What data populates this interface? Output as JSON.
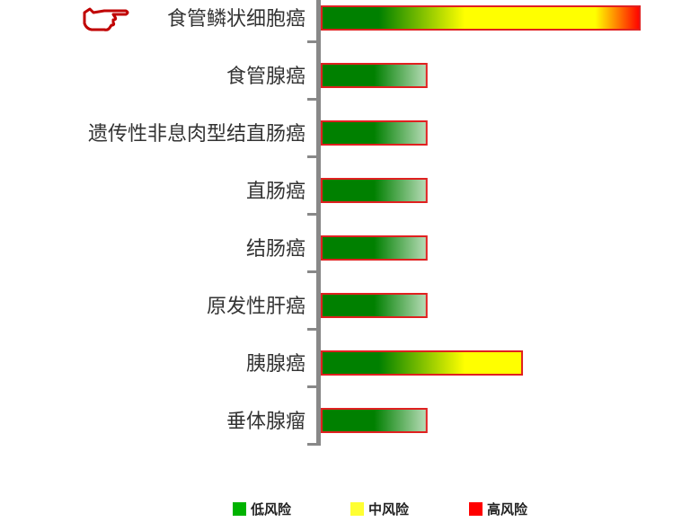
{
  "chart_data": {
    "type": "bar",
    "orientation": "horizontal",
    "categories": [
      "食管鳞状细胞癌",
      "食管腺癌",
      "遗传性非息肉型结直肠癌",
      "直肠癌",
      "结肠癌",
      "原发性肝癌",
      "胰腺癌",
      "垂体腺瘤"
    ],
    "values": [
      100,
      33,
      33,
      33,
      33,
      33,
      63,
      33
    ],
    "xlim": [
      0,
      100
    ],
    "highlighted_category": "食管鳞状细胞癌",
    "highlight_icon": "pointing-hand-icon",
    "grid": false,
    "legend_position": "bottom",
    "legend": [
      {
        "label": "低风险",
        "color": "#00b300"
      },
      {
        "label": "中风险",
        "color": "#ffff33"
      },
      {
        "label": "高风险",
        "color": "#ff0000"
      }
    ],
    "bar_border_color": "#e02020",
    "axis_color": "#888888"
  }
}
